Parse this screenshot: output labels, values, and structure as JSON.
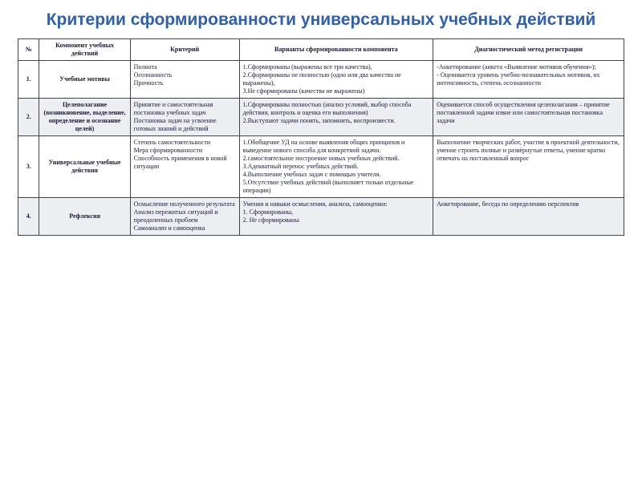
{
  "title_color": "#2f5fb0",
  "title": "Критерии сформированности универсальных учебных действий",
  "headers": {
    "num": "№",
    "component": "Компонент учебных действий",
    "criterion": "Критерий",
    "variants": "Варианты сформированности компонента",
    "diagnostic": "Диагностический метод   регистрации"
  },
  "rows": [
    {
      "num": "1.",
      "component": "Учебные мотивы",
      "criterion": "Полнота\nОсознанность\nПрочность",
      "variants": "1.Сформированы (выражены все три качества),\n2.Сформированы не полностью (одно или два качества не выражены),\n3.Не сформированы (качества не выражены)",
      "diagnostic": "-Анкетирование (анкета «Выявление мотивов обучения»);\n- Оценивается уровень учебно-познавательных мотивов, их интенсивность, степень осознанности"
    },
    {
      "num": "2.",
      "component": "Целеполагание (возникновение, выделение, определение и осознание целей)",
      "criterion": "Принятие и самостоятельная постановка учебных задач\nПостановка задач на усвоение готовых знаний и действий",
      "variants": "1.Сформированы полностью (анализ условий, выбор способа действия, контроль и оценка его выполнения)\n2.Выступают задачи понять, запомнить, воспроизвести.",
      "diagnostic": "Оценивается способ осуществления целеполагания – принятие поставленной задачи извне или самостоятельная постановка задачи"
    },
    {
      "num": "3.",
      "component": "Универсальные учебные действия",
      "criterion": "Степень самостоятельности\nМера сформированности\nСпособность применения в новой ситуации",
      "variants": "1.Обобщение УД на основе выявления общих принципов и выведение нового способа для конкретной задачи.\n2.самостоятельное построение новых учебных действий.\n3.Адекватный перенос учебных действий.\n4.Выполнение учебных задач с помощью учителя.\n5.Отсутствие учебных действий (выполняет только отдельные операции)",
      "diagnostic": "Выполнение творческих работ, участие в проектной деятельности, умение строить полные и развёрнутые ответы, умение кратко отвечать на поставленный вопрос"
    },
    {
      "num": "4.",
      "component": "Рефлексия",
      "criterion": "Осмысление полученного результата\nАнализ пережитых ситуаций и преодоленных проблем\nСамоанализ и самооценка",
      "variants": "Умения и навыки осмысления, анализа, самооценки:\n1. Сформированы,\n2. Не сформированы",
      "diagnostic": "Анкетирование, беседа по определению перспектив"
    }
  ]
}
